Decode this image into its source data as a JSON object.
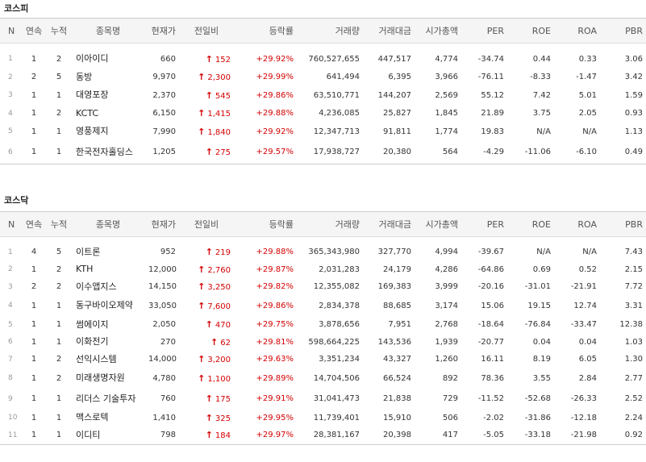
{
  "columns": [
    "N",
    "연속",
    "누적",
    "종목명",
    "현재가",
    "전일비",
    "등락률",
    "거래량",
    "거래대금",
    "시가총액",
    "PER",
    "ROE",
    "ROA",
    "PBR"
  ],
  "icons": {
    "up": "up-arrow-icon"
  },
  "colors": {
    "up": "#d40000",
    "header_bg": "#f5f5f5"
  },
  "kospi": {
    "title": "코스피",
    "rows": [
      {
        "n": "1",
        "streak": "1",
        "cum": "2",
        "name": "이아이디",
        "price": "660",
        "change": "152",
        "rate": "+29.92%",
        "volume": "760,527,655",
        "value": "447,517",
        "cap": "4,774",
        "per": "-34.74",
        "roe": "0.44",
        "roa": "0.33",
        "pbr": "3.06"
      },
      {
        "n": "2",
        "streak": "2",
        "cum": "5",
        "name": "동방",
        "price": "9,970",
        "change": "2,300",
        "rate": "+29.99%",
        "volume": "641,494",
        "value": "6,395",
        "cap": "3,966",
        "per": "-76.11",
        "roe": "-8.33",
        "roa": "-1.47",
        "pbr": "3.42"
      },
      {
        "n": "3",
        "streak": "1",
        "cum": "1",
        "name": "대영포장",
        "price": "2,370",
        "change": "545",
        "rate": "+29.86%",
        "volume": "63,510,771",
        "value": "144,207",
        "cap": "2,569",
        "per": "55.12",
        "roe": "7.42",
        "roa": "5.01",
        "pbr": "1.59"
      },
      {
        "n": "4",
        "streak": "1",
        "cum": "2",
        "name": "KCTC",
        "price": "6,150",
        "change": "1,415",
        "rate": "+29.88%",
        "volume": "4,236,085",
        "value": "25,827",
        "cap": "1,845",
        "per": "21.89",
        "roe": "3.75",
        "roa": "2.05",
        "pbr": "0.93"
      },
      {
        "n": "5",
        "streak": "1",
        "cum": "1",
        "name": "영풍제지",
        "price": "7,990",
        "change": "1,840",
        "rate": "+29.92%",
        "volume": "12,347,713",
        "value": "91,811",
        "cap": "1,774",
        "per": "19.83",
        "roe": "N/A",
        "roa": "N/A",
        "pbr": "1.13"
      },
      {
        "n": "6",
        "streak": "1",
        "cum": "1",
        "name": "한국전자홀딩스",
        "price": "1,205",
        "change": "275",
        "rate": "+29.57%",
        "volume": "17,938,727",
        "value": "20,380",
        "cap": "564",
        "per": "-4.29",
        "roe": "-11.06",
        "roa": "-6.10",
        "pbr": "0.49"
      }
    ]
  },
  "kosdaq": {
    "title": "코스닥",
    "rows": [
      {
        "n": "1",
        "streak": "4",
        "cum": "5",
        "name": "이트론",
        "price": "952",
        "change": "219",
        "rate": "+29.88%",
        "volume": "365,343,980",
        "value": "327,770",
        "cap": "4,994",
        "per": "-39.67",
        "roe": "N/A",
        "roa": "N/A",
        "pbr": "7.43"
      },
      {
        "n": "2",
        "streak": "1",
        "cum": "2",
        "name": "KTH",
        "price": "12,000",
        "change": "2,760",
        "rate": "+29.87%",
        "volume": "2,031,283",
        "value": "24,179",
        "cap": "4,286",
        "per": "-64.86",
        "roe": "0.69",
        "roa": "0.52",
        "pbr": "2.15"
      },
      {
        "n": "3",
        "streak": "2",
        "cum": "2",
        "name": "이수앱지스",
        "price": "14,150",
        "change": "3,250",
        "rate": "+29.82%",
        "volume": "12,355,082",
        "value": "169,383",
        "cap": "3,999",
        "per": "-20.16",
        "roe": "-31.01",
        "roa": "-21.91",
        "pbr": "7.72"
      },
      {
        "n": "4",
        "streak": "1",
        "cum": "1",
        "name": "동구바이오제약",
        "price": "33,050",
        "change": "7,600",
        "rate": "+29.86%",
        "volume": "2,834,378",
        "value": "88,685",
        "cap": "3,174",
        "per": "15.06",
        "roe": "19.15",
        "roa": "12.74",
        "pbr": "3.31"
      },
      {
        "n": "5",
        "streak": "1",
        "cum": "1",
        "name": "썸에이지",
        "price": "2,050",
        "change": "470",
        "rate": "+29.75%",
        "volume": "3,878,656",
        "value": "7,951",
        "cap": "2,768",
        "per": "-18.64",
        "roe": "-76.84",
        "roa": "-33.47",
        "pbr": "12.38"
      },
      {
        "n": "6",
        "streak": "1",
        "cum": "1",
        "name": "이화전기",
        "price": "270",
        "change": "62",
        "rate": "+29.81%",
        "volume": "598,664,225",
        "value": "143,536",
        "cap": "1,939",
        "per": "-20.77",
        "roe": "0.04",
        "roa": "0.04",
        "pbr": "1.03"
      },
      {
        "n": "7",
        "streak": "1",
        "cum": "2",
        "name": "선익시스템",
        "price": "14,000",
        "change": "3,200",
        "rate": "+29.63%",
        "volume": "3,351,234",
        "value": "43,327",
        "cap": "1,260",
        "per": "16.11",
        "roe": "8.19",
        "roa": "6.05",
        "pbr": "1.30"
      },
      {
        "n": "8",
        "streak": "1",
        "cum": "2",
        "name": "미래생명자원",
        "price": "4,780",
        "change": "1,100",
        "rate": "+29.89%",
        "volume": "14,704,506",
        "value": "66,524",
        "cap": "892",
        "per": "78.36",
        "roe": "3.55",
        "roa": "2.84",
        "pbr": "2.77"
      },
      {
        "n": "9",
        "streak": "1",
        "cum": "1",
        "name": "리더스 기술투자",
        "price": "760",
        "change": "175",
        "rate": "+29.91%",
        "volume": "31,041,473",
        "value": "21,838",
        "cap": "729",
        "per": "-11.52",
        "roe": "-52.68",
        "roa": "-26.33",
        "pbr": "2.52"
      },
      {
        "n": "10",
        "streak": "1",
        "cum": "1",
        "name": "맥스로텍",
        "price": "1,410",
        "change": "325",
        "rate": "+29.95%",
        "volume": "11,739,401",
        "value": "15,910",
        "cap": "506",
        "per": "-2.02",
        "roe": "-31.86",
        "roa": "-12.18",
        "pbr": "2.24"
      },
      {
        "n": "11",
        "streak": "1",
        "cum": "1",
        "name": "이디티",
        "price": "798",
        "change": "184",
        "rate": "+29.97%",
        "volume": "28,381,167",
        "value": "20,398",
        "cap": "417",
        "per": "-5.05",
        "roe": "-33.18",
        "roa": "-21.98",
        "pbr": "0.92"
      }
    ]
  }
}
